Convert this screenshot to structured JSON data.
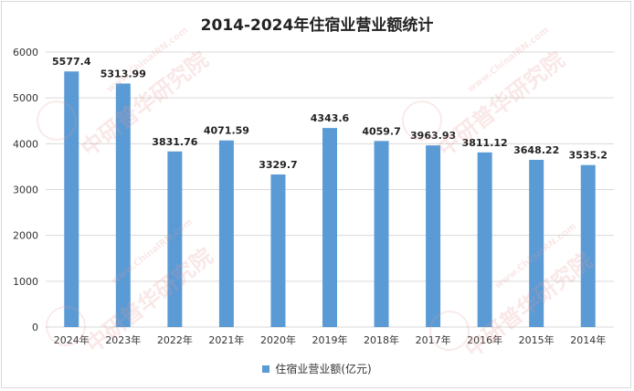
{
  "chart_data": {
    "type": "bar",
    "title": "2014-2024年住宿业营业额统计",
    "categories": [
      "2024年",
      "2023年",
      "2022年",
      "2021年",
      "2020年",
      "2019年",
      "2018年",
      "2017年",
      "2016年",
      "2015年",
      "2014年"
    ],
    "series": [
      {
        "name": "住宿业营业额(亿元)",
        "values": [
          5577.4,
          5313.99,
          3831.76,
          4071.59,
          3329.7,
          4343.6,
          4059.7,
          3963.93,
          3811.12,
          3648.22,
          3535.2
        ],
        "labels": [
          "5577.4",
          "5313.99",
          "3831.76",
          "4071.59",
          "3329.7",
          "4343.6",
          "4059.7",
          "3963.93",
          "3811.12",
          "3648.22",
          "3535.2"
        ]
      }
    ],
    "ylim": [
      0,
      6000
    ],
    "yticks": [
      "0",
      "1000",
      "2000",
      "3000",
      "4000",
      "5000",
      "6000"
    ],
    "grid": true,
    "legend_position": "bottom",
    "bar_color": "#5b9bd5"
  },
  "watermark": {
    "text": "中研普华研究院",
    "url": "www.ChinaIRN.com"
  }
}
